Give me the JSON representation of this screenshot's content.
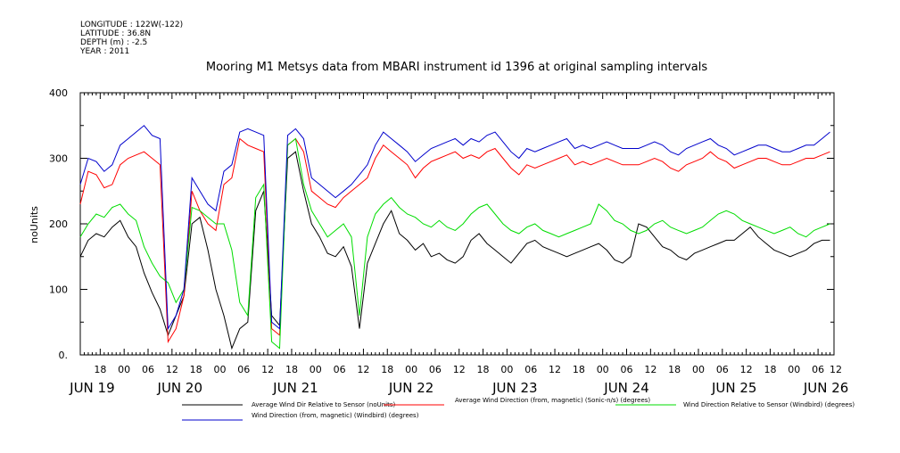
{
  "meta": {
    "longitude": "LONGITUDE : 122W(-122)",
    "latitude": "LATITUDE : 36.8N",
    "depth": "DEPTH (m) : -2.5",
    "year": "YEAR : 2011"
  },
  "chart_data": {
    "type": "line",
    "title": "Mooring M1 Metsys data from MBARI instrument id 1396 at original sampling intervals",
    "ylabel": "noUnits",
    "xlabel": "",
    "ylim": [
      0,
      400
    ],
    "yticks": [
      0,
      100,
      200,
      300,
      400
    ],
    "xlim_hours": [
      13,
      202
    ],
    "hour_ticks": [
      18,
      24,
      30,
      36,
      42,
      48,
      54,
      60,
      66,
      72,
      78,
      84,
      90,
      96,
      102,
      108,
      114,
      120,
      126,
      132,
      138,
      144,
      150,
      156,
      162,
      168,
      174,
      180,
      186,
      192,
      198
    ],
    "hour_labels": [
      "18",
      "00",
      "06",
      "12",
      "18",
      "00",
      "06",
      "12",
      "18",
      "00",
      "06",
      "12",
      "18",
      "00",
      "06",
      "12",
      "18",
      "00",
      "06",
      "12",
      "18",
      "00",
      "06",
      "12",
      "18",
      "00",
      "06",
      "12",
      "18",
      "00",
      "06",
      "12"
    ],
    "hour_label_hours": [
      18,
      24,
      30,
      36,
      42,
      48,
      54,
      60,
      66,
      72,
      78,
      84,
      90,
      96,
      102,
      108,
      114,
      120,
      126,
      132,
      138,
      144,
      150,
      156,
      162,
      168,
      174,
      180,
      186,
      192,
      198,
      204
    ],
    "date_labels": [
      {
        "text": "JUN 19",
        "hour": 16
      },
      {
        "text": "JUN 20",
        "hour": 38
      },
      {
        "text": "JUN 21",
        "hour": 67
      },
      {
        "text": "JUN 22",
        "hour": 96
      },
      {
        "text": "JUN 23",
        "hour": 122
      },
      {
        "text": "JUN 24",
        "hour": 150
      },
      {
        "text": "JUN 25",
        "hour": 177
      },
      {
        "text": "JUN 26",
        "hour": 200
      }
    ],
    "series": [
      {
        "name": "Average Wind Dir Relative to Sensor (noUnits)",
        "color": "#000000",
        "x": [
          13,
          15,
          17,
          19,
          21,
          23,
          25,
          27,
          29,
          31,
          33,
          35,
          37,
          39,
          41,
          43,
          45,
          47,
          49,
          51,
          53,
          55,
          57,
          59,
          61,
          63,
          65,
          67,
          69,
          71,
          73,
          75,
          77,
          79,
          81,
          83,
          85,
          87,
          89,
          91,
          93,
          95,
          97,
          99,
          101,
          103,
          105,
          107,
          109,
          111,
          113,
          115,
          117,
          119,
          121,
          123,
          125,
          127,
          129,
          131,
          133,
          135,
          137,
          139,
          141,
          143,
          145,
          147,
          149,
          151,
          153,
          155,
          157,
          159,
          161,
          163,
          165,
          167,
          169,
          171,
          173,
          175,
          177,
          179,
          181,
          183,
          185,
          187,
          189,
          191,
          193,
          195,
          197,
          199,
          201
        ],
        "values": [
          150,
          175,
          185,
          180,
          195,
          205,
          180,
          165,
          125,
          95,
          70,
          30,
          60,
          90,
          200,
          210,
          160,
          100,
          60,
          10,
          40,
          50,
          220,
          250,
          60,
          45,
          300,
          310,
          250,
          200,
          180,
          155,
          150,
          165,
          135,
          40,
          140,
          170,
          200,
          220,
          185,
          175,
          160,
          170,
          150,
          155,
          145,
          140,
          150,
          175,
          185,
          170,
          160,
          150,
          140,
          155,
          170,
          175,
          165,
          160,
          155,
          150,
          155,
          160,
          165,
          170,
          160,
          145,
          140,
          150,
          200,
          195,
          180,
          165,
          160,
          150,
          145,
          155,
          160,
          165,
          170,
          175,
          175,
          185,
          195,
          180,
          170,
          160,
          155,
          150,
          155,
          160,
          170,
          175,
          175
        ]
      },
      {
        "name": "Average Wind Direction (from, magnetic) (Sonic-n/s) (degrees)",
        "color": "#ff0000",
        "x": [
          13,
          15,
          17,
          19,
          21,
          23,
          25,
          27,
          29,
          31,
          33,
          35,
          37,
          39,
          41,
          43,
          45,
          47,
          49,
          51,
          53,
          55,
          57,
          59,
          61,
          63,
          65,
          67,
          69,
          71,
          73,
          75,
          77,
          79,
          81,
          83,
          85,
          87,
          89,
          91,
          93,
          95,
          97,
          99,
          101,
          103,
          105,
          107,
          109,
          111,
          113,
          115,
          117,
          119,
          121,
          123,
          125,
          127,
          129,
          131,
          133,
          135,
          137,
          139,
          141,
          143,
          145,
          147,
          149,
          151,
          153,
          155,
          157,
          159,
          161,
          163,
          165,
          167,
          169,
          171,
          173,
          175,
          177,
          179,
          181,
          183,
          185,
          187,
          189,
          191,
          193,
          195,
          197,
          199,
          201
        ],
        "values": [
          230,
          280,
          275,
          255,
          260,
          290,
          300,
          305,
          310,
          300,
          290,
          20,
          40,
          90,
          250,
          220,
          200,
          190,
          260,
          270,
          330,
          320,
          315,
          310,
          40,
          30,
          320,
          330,
          310,
          250,
          240,
          230,
          225,
          240,
          250,
          260,
          270,
          300,
          320,
          310,
          300,
          290,
          270,
          285,
          295,
          300,
          305,
          310,
          300,
          305,
          300,
          310,
          315,
          300,
          285,
          275,
          290,
          285,
          290,
          295,
          300,
          305,
          290,
          295,
          290,
          295,
          300,
          295,
          290,
          290,
          290,
          295,
          300,
          295,
          285,
          280,
          290,
          295,
          300,
          310,
          300,
          295,
          285,
          290,
          295,
          300,
          300,
          295,
          290,
          290,
          295,
          300,
          300,
          305,
          310
        ]
      },
      {
        "name": "Wind Direction Relative to Sensor (Windbird) (degrees)",
        "color": "#00dd00",
        "x": [
          13,
          15,
          17,
          19,
          21,
          23,
          25,
          27,
          29,
          31,
          33,
          35,
          37,
          39,
          41,
          43,
          45,
          47,
          49,
          51,
          53,
          55,
          57,
          59,
          61,
          63,
          65,
          67,
          69,
          71,
          73,
          75,
          77,
          79,
          81,
          83,
          85,
          87,
          89,
          91,
          93,
          95,
          97,
          99,
          101,
          103,
          105,
          107,
          109,
          111,
          113,
          115,
          117,
          119,
          121,
          123,
          125,
          127,
          129,
          131,
          133,
          135,
          137,
          139,
          141,
          143,
          145,
          147,
          149,
          151,
          153,
          155,
          157,
          159,
          161,
          163,
          165,
          167,
          169,
          171,
          173,
          175,
          177,
          179,
          181,
          183,
          185,
          187,
          189,
          191,
          193,
          195,
          197,
          199,
          201
        ],
        "values": [
          180,
          200,
          215,
          210,
          225,
          230,
          215,
          205,
          165,
          140,
          120,
          110,
          80,
          100,
          225,
          220,
          210,
          200,
          200,
          160,
          80,
          60,
          240,
          260,
          20,
          10,
          320,
          330,
          260,
          220,
          200,
          180,
          190,
          200,
          180,
          60,
          180,
          215,
          230,
          240,
          225,
          215,
          210,
          200,
          195,
          205,
          195,
          190,
          200,
          215,
          225,
          230,
          215,
          200,
          190,
          185,
          195,
          200,
          190,
          185,
          180,
          185,
          190,
          195,
          200,
          230,
          220,
          205,
          200,
          190,
          185,
          190,
          200,
          205,
          195,
          190,
          185,
          190,
          195,
          205,
          215,
          220,
          215,
          205,
          200,
          195,
          190,
          185,
          190,
          195,
          185,
          180,
          190,
          195,
          200
        ]
      },
      {
        "name": "Wind Direction (from, magnetic) (Windbird) (degrees)",
        "color": "#0000cc",
        "x": [
          13,
          15,
          17,
          19,
          21,
          23,
          25,
          27,
          29,
          31,
          33,
          35,
          37,
          39,
          41,
          43,
          45,
          47,
          49,
          51,
          53,
          55,
          57,
          59,
          61,
          63,
          65,
          67,
          69,
          71,
          73,
          75,
          77,
          79,
          81,
          83,
          85,
          87,
          89,
          91,
          93,
          95,
          97,
          99,
          101,
          103,
          105,
          107,
          109,
          111,
          113,
          115,
          117,
          119,
          121,
          123,
          125,
          127,
          129,
          131,
          133,
          135,
          137,
          139,
          141,
          143,
          145,
          147,
          149,
          151,
          153,
          155,
          157,
          159,
          161,
          163,
          165,
          167,
          169,
          171,
          173,
          175,
          177,
          179,
          181,
          183,
          185,
          187,
          189,
          191,
          193,
          195,
          197,
          199,
          201
        ],
        "values": [
          260,
          300,
          295,
          280,
          290,
          320,
          330,
          340,
          350,
          335,
          330,
          40,
          60,
          100,
          270,
          250,
          230,
          220,
          280,
          290,
          340,
          345,
          340,
          335,
          50,
          40,
          335,
          345,
          330,
          270,
          260,
          250,
          240,
          250,
          260,
          275,
          290,
          320,
          340,
          330,
          320,
          310,
          295,
          305,
          315,
          320,
          325,
          330,
          320,
          330,
          325,
          335,
          340,
          325,
          310,
          300,
          315,
          310,
          315,
          320,
          325,
          330,
          315,
          320,
          315,
          320,
          325,
          320,
          315,
          315,
          315,
          320,
          325,
          320,
          310,
          305,
          315,
          320,
          325,
          330,
          320,
          315,
          305,
          310,
          315,
          320,
          320,
          315,
          310,
          310,
          315,
          320,
          320,
          330,
          340
        ]
      }
    ],
    "legend": [
      {
        "label": "Average Wind Dir Relative to Sensor (noUnits)",
        "color": "#000000"
      },
      {
        "label": "Average Wind Direction (from, magnetic) (Sonic-n/s) (degrees)",
        "color": "#ff0000"
      },
      {
        "label": "Wind Direction Relative to Sensor (Windbird) (degrees)",
        "color": "#00dd00"
      },
      {
        "label": "Wind Direction (from, magnetic) (Windbird) (degrees)",
        "color": "#0000cc"
      }
    ],
    "legend_placement": "bottom",
    "grid": false
  }
}
